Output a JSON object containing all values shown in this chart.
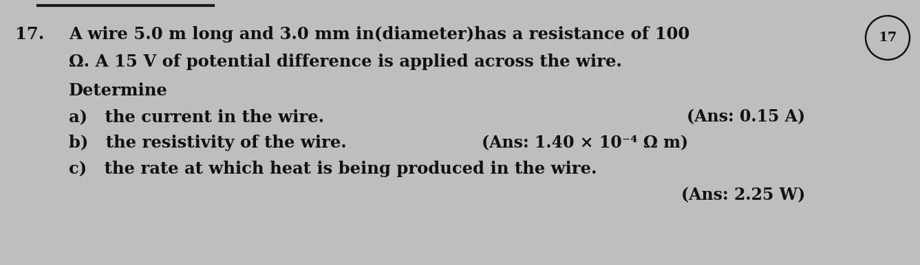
{
  "background_color": "#bebebe",
  "number": "17.",
  "line1a": "A wire 5.0 m long and 3.0 mm in",
  "line1b": "diameter",
  "line1c": "has a resistance of 100",
  "line2": "Ω. A 15 V of potential difference is applied across the wire.",
  "line3": "Determine",
  "item_a": "a)   the current in the wire.",
  "ans_a": "(Ans: 0.15 A)",
  "item_b": "b)   the resistivity of the wire.",
  "ans_b": "(Ans: 1.40 × 10⁻⁴ Ω m)",
  "item_c": "c)   the rate at which heat is being produced in the wire.",
  "ans_c": "(Ans: 2.25 W)",
  "circle_label": "17",
  "top_bar_color": "#1a1a1a",
  "text_color": "#111111",
  "font_size_main": 17.5,
  "font_size_ans": 17.0,
  "font_size_num": 17.5
}
